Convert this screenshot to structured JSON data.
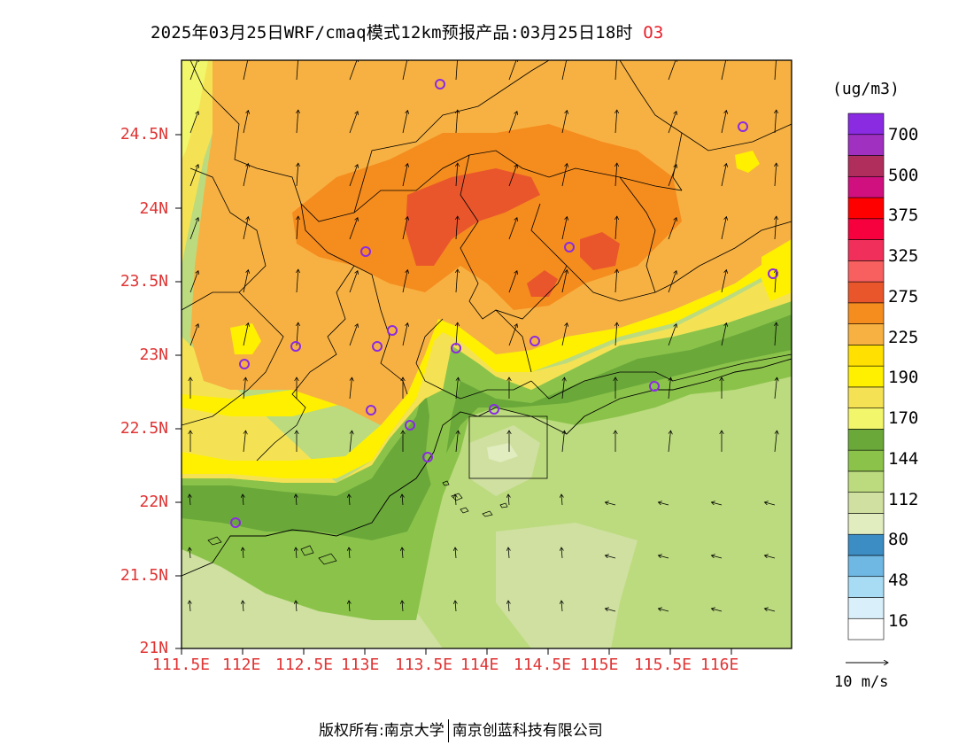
{
  "title": {
    "main": "2025年03月25日WRF/cmaq模式12km预报产品:03月25日18时",
    "pollutant": "O3"
  },
  "lat_labels": [
    "24.5N",
    "24N",
    "23.5N",
    "23N",
    "22.5N",
    "22N",
    "21.5N",
    "21N"
  ],
  "lon_labels": [
    "111.5E",
    "112E",
    "112.5E",
    "113E",
    "113.5E",
    "114E",
    "114.5E",
    "115E",
    "115.5E",
    "116E"
  ],
  "legend": {
    "unit": "(ug/m3)",
    "colors": [
      "#ffffff",
      "#d9f0fb",
      "#a8dcf4",
      "#6fb8e4",
      "#3d8dc5",
      "#e1ecbf",
      "#cfe0a0",
      "#bcdb7e",
      "#8bc34a",
      "#6aa83a",
      "#f2f66a",
      "#f4e254",
      "#fff000",
      "#ffe000",
      "#f7b142",
      "#f58c1e",
      "#e9562c",
      "#f86060",
      "#f0305a",
      "#f6003e",
      "#ff0000",
      "#d0107e",
      "#b02e5c",
      "#a030c0",
      "#8a2be2"
    ],
    "labels": [
      "16",
      "48",
      "80",
      "112",
      "144",
      "170",
      "190",
      "225",
      "275",
      "325",
      "375",
      "500",
      "700"
    ]
  },
  "wind_vector_label": "10 m/s",
  "copyright": {
    "left": "版权所有:南京大学",
    "right": "南京创蓝科技有限公司"
  },
  "map_layers": {
    "concentration_shading": "O3",
    "wind_vectors": true,
    "province_boundaries": true,
    "station_markers": "purple-circles"
  }
}
